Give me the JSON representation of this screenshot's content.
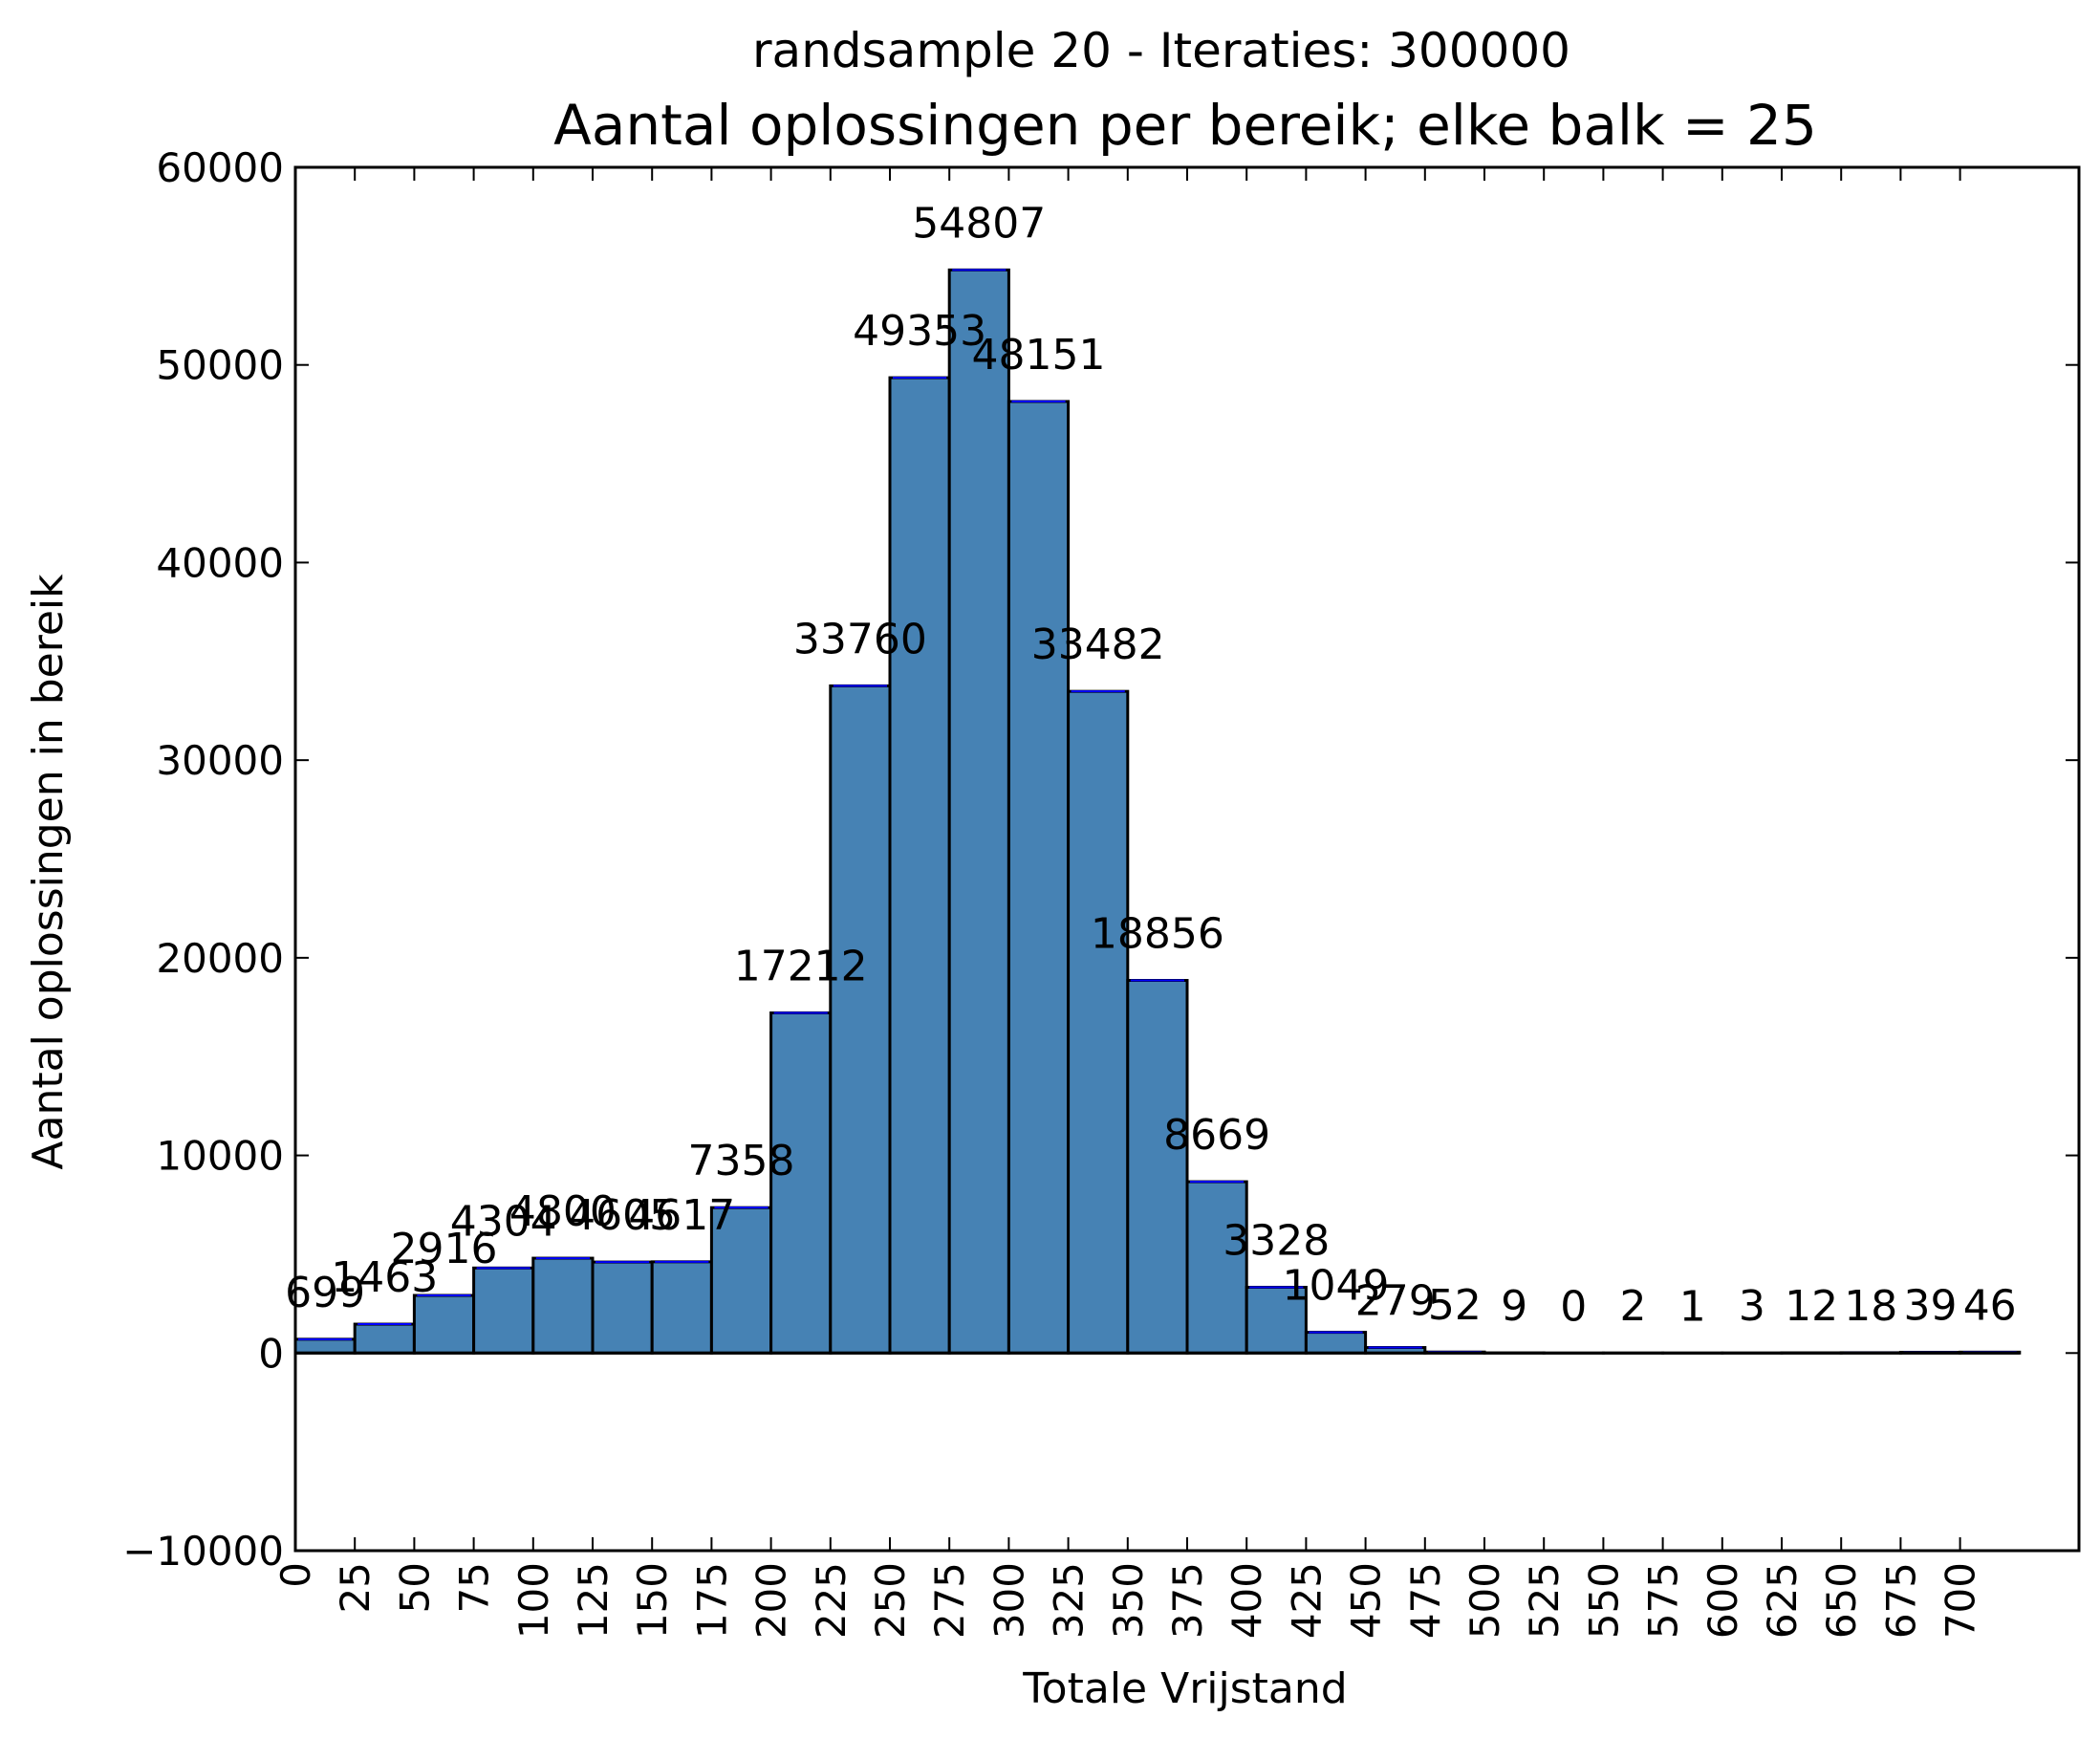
{
  "chart_data": {
    "type": "bar",
    "suptitle": "randsample 20 - Iteraties: 300000",
    "title": "Aantal oplossingen per bereik; elke balk = 25",
    "xlabel": "Totale Vrijstand",
    "ylabel": "Aantal oplossingen in bereik",
    "bin_width": 25,
    "bin_starts": [
      0,
      25,
      50,
      75,
      100,
      125,
      150,
      175,
      200,
      225,
      250,
      275,
      300,
      325,
      350,
      375,
      400,
      425,
      450,
      475,
      500,
      525,
      550,
      575,
      600,
      625,
      650,
      675,
      700
    ],
    "values": [
      699,
      1463,
      2916,
      4304,
      4800,
      4605,
      4617,
      7358,
      17212,
      33760,
      49353,
      54807,
      48151,
      33482,
      18856,
      8669,
      3328,
      1049,
      279,
      52,
      9,
      0,
      2,
      1,
      3,
      12,
      18,
      39,
      46
    ],
    "labels": [
      "699",
      "1463",
      "2916",
      "4304",
      "4800",
      "4605",
      "4617",
      "7358",
      "17212",
      "33760",
      "49353",
      "54807",
      "48151",
      "33482",
      "18856",
      "8669",
      "3328",
      "1049",
      "279",
      "52",
      "9",
      "0",
      "2",
      "1",
      "3",
      "12",
      "18",
      "39",
      "46"
    ],
    "xticks": [
      "0",
      "25",
      "50",
      "75",
      "100",
      "125",
      "150",
      "175",
      "200",
      "225",
      "250",
      "275",
      "300",
      "325",
      "350",
      "375",
      "400",
      "425",
      "450",
      "475",
      "500",
      "525",
      "550",
      "575",
      "600",
      "625",
      "650",
      "675",
      "700"
    ],
    "yticks": [
      "−10000",
      "0",
      "10000",
      "20000",
      "30000",
      "40000",
      "50000",
      "60000"
    ],
    "ytick_values": [
      -10000,
      0,
      10000,
      20000,
      30000,
      40000,
      50000,
      60000
    ],
    "xlim": [
      0,
      750
    ],
    "ylim": [
      -10000,
      60000
    ],
    "bar_color": "#4682b4",
    "edge_color": "#000000",
    "grid": false,
    "legend": "none"
  }
}
